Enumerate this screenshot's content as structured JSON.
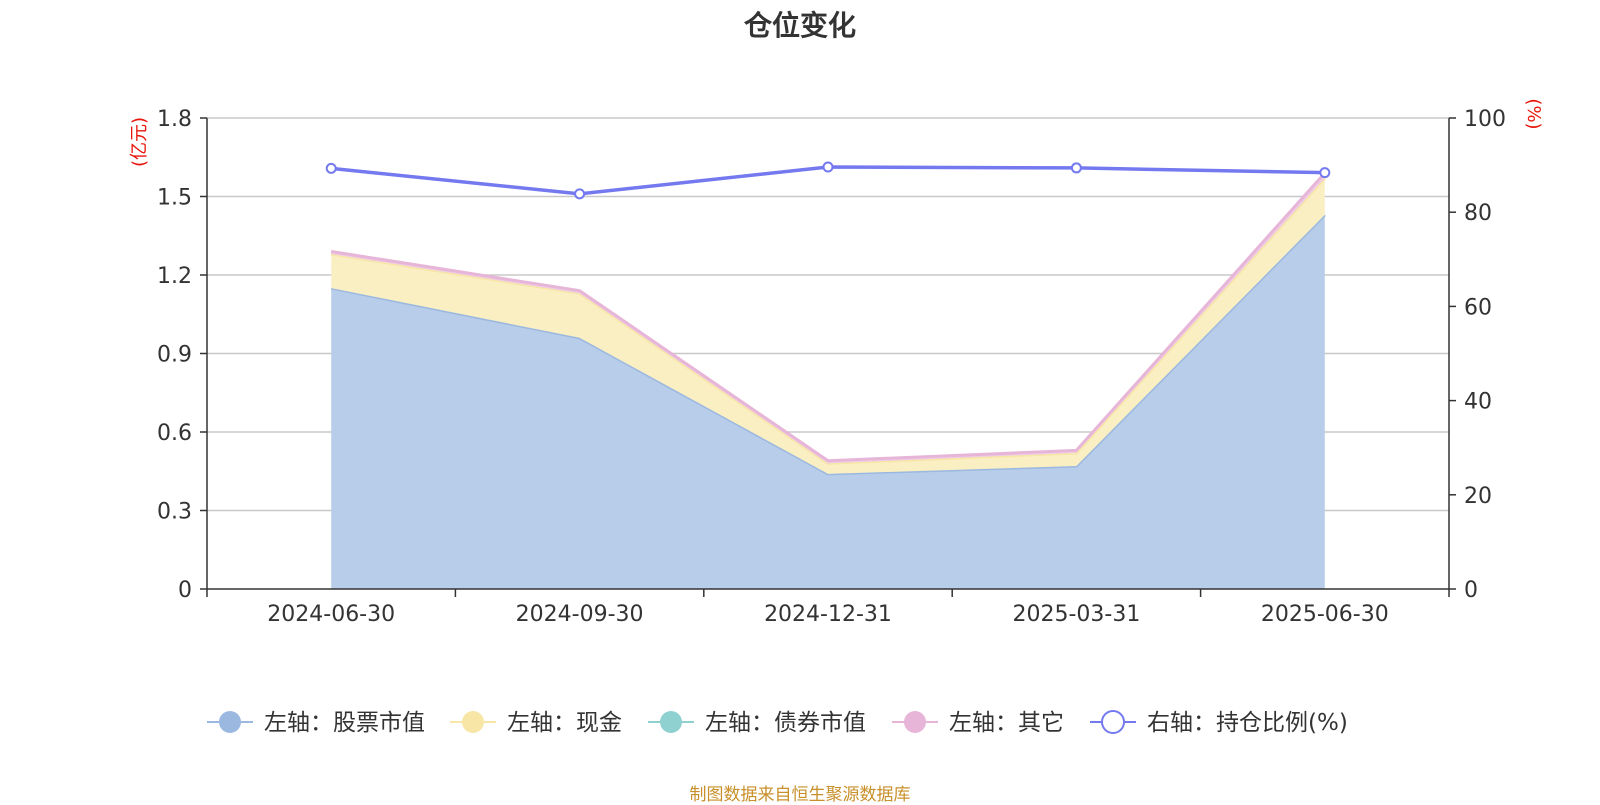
{
  "title": "仓位变化",
  "source_note": "制图数据来自恒生聚源数据库",
  "chart_data": {
    "type": "area",
    "title": "仓位变化",
    "categories": [
      "2024-06-30",
      "2024-09-30",
      "2024-12-31",
      "2025-03-31",
      "2025-06-30"
    ],
    "left_axis": {
      "unit": "(亿元)",
      "ylim": [
        0,
        1.8
      ],
      "ticks": [
        "0",
        "0.3",
        "0.6",
        "0.9",
        "1.2",
        "1.5",
        "1.8"
      ]
    },
    "right_axis": {
      "unit": "(%)",
      "ylim": [
        0,
        100
      ],
      "ticks": [
        "0",
        "20",
        "40",
        "60",
        "80",
        "100"
      ]
    },
    "stacked": true,
    "grid": true,
    "legend_position": "bottom",
    "series": [
      {
        "name": "左轴：股票市值",
        "axis": "left",
        "type": "area",
        "color": "#9bb8e0",
        "fill": "#b8cde9",
        "values": [
          1.15,
          0.96,
          0.44,
          0.47,
          1.43
        ]
      },
      {
        "name": "左轴：现金",
        "axis": "left",
        "type": "area",
        "color": "#f7e6a6",
        "fill": "#faefc3",
        "values": [
          0.13,
          0.17,
          0.04,
          0.05,
          0.14
        ]
      },
      {
        "name": "左轴：债券市值",
        "axis": "left",
        "type": "area",
        "color": "#8fd0d0",
        "fill": "#b8e2e2",
        "values": [
          0,
          0,
          0,
          0,
          0
        ]
      },
      {
        "name": "左轴：其它",
        "axis": "left",
        "type": "area",
        "color": "#e6b5d8",
        "fill": "#efcde5",
        "values": [
          0.01,
          0.01,
          0.01,
          0.01,
          0.02
        ]
      },
      {
        "name": "右轴：持仓比例(%)",
        "axis": "right",
        "type": "line",
        "color": "#7479ef",
        "values": [
          89.3,
          83.9,
          89.6,
          89.4,
          88.4
        ]
      }
    ]
  }
}
